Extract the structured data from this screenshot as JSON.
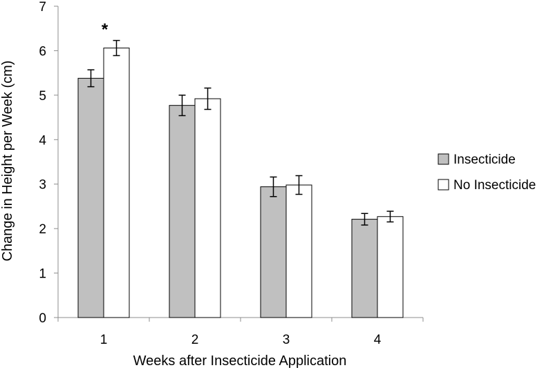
{
  "chart_data": {
    "type": "bar",
    "title": "",
    "xlabel": "Weeks after Insecticide Application",
    "ylabel": "Change in Height per Week (cm)",
    "categories": [
      "1",
      "2",
      "3",
      "4"
    ],
    "yticks": [
      "0",
      "1",
      "2",
      "3",
      "4",
      "5",
      "6",
      "7"
    ],
    "ylim": [
      0,
      7
    ],
    "grid": false,
    "legend_position": "right",
    "series": [
      {
        "name": "Insecticide",
        "color": "#c0c0c0",
        "values": [
          5.38,
          4.77,
          2.94,
          2.21
        ],
        "errors": [
          0.19,
          0.23,
          0.22,
          0.13
        ]
      },
      {
        "name": "No Insecticide",
        "color": "#ffffff",
        "values": [
          6.06,
          4.92,
          2.98,
          2.27
        ],
        "errors": [
          0.17,
          0.24,
          0.21,
          0.12
        ]
      }
    ],
    "annotations": [
      {
        "text": "*",
        "category": "1",
        "series": "No Insecticide"
      }
    ]
  }
}
